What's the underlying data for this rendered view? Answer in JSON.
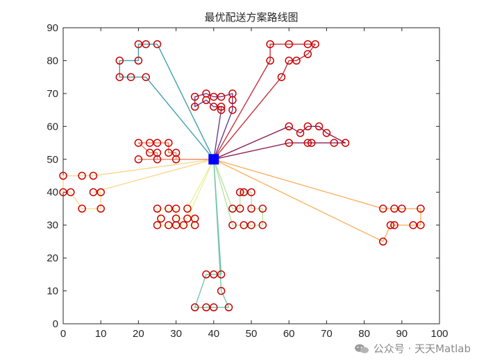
{
  "chart_data": {
    "type": "scatter",
    "title": "最优配送方案路线图",
    "xlim": [
      0,
      100
    ],
    "ylim": [
      0,
      90
    ],
    "xticks": [
      0,
      10,
      20,
      30,
      40,
      50,
      60,
      70,
      80,
      90,
      100
    ],
    "yticks": [
      0,
      10,
      20,
      30,
      40,
      50,
      60,
      70,
      80,
      90
    ],
    "grid": false,
    "depot": {
      "x": 40,
      "y": 50,
      "marker": "square",
      "color": "#0000ff"
    },
    "customer_marker": {
      "shape": "circle",
      "color": "#cc0000"
    },
    "customers": [
      [
        20,
        85
      ],
      [
        22,
        85
      ],
      [
        25,
        85
      ],
      [
        15,
        80
      ],
      [
        20,
        80
      ],
      [
        15,
        75
      ],
      [
        18,
        75
      ],
      [
        22,
        75
      ],
      [
        55,
        85
      ],
      [
        60,
        85
      ],
      [
        65,
        85
      ],
      [
        67,
        85
      ],
      [
        55,
        80
      ],
      [
        60,
        80
      ],
      [
        62,
        80
      ],
      [
        65,
        82
      ],
      [
        58,
        75
      ],
      [
        35,
        69
      ],
      [
        38,
        70
      ],
      [
        40,
        69
      ],
      [
        42,
        69
      ],
      [
        45,
        70
      ],
      [
        35,
        66
      ],
      [
        38,
        68
      ],
      [
        40,
        66
      ],
      [
        42,
        66
      ],
      [
        42,
        65
      ],
      [
        45,
        68
      ],
      [
        45,
        65
      ],
      [
        60,
        60
      ],
      [
        63,
        58
      ],
      [
        65,
        60
      ],
      [
        68,
        60
      ],
      [
        70,
        58
      ],
      [
        60,
        55
      ],
      [
        65,
        55
      ],
      [
        66,
        55
      ],
      [
        72,
        55
      ],
      [
        75,
        55
      ],
      [
        20,
        55
      ],
      [
        23,
        55
      ],
      [
        25,
        55
      ],
      [
        28,
        55
      ],
      [
        23,
        52
      ],
      [
        25,
        52
      ],
      [
        28,
        52
      ],
      [
        30,
        52
      ],
      [
        20,
        50
      ],
      [
        25,
        50
      ],
      [
        30,
        50
      ],
      [
        0,
        45
      ],
      [
        5,
        45
      ],
      [
        8,
        45
      ],
      [
        0,
        40
      ],
      [
        2,
        40
      ],
      [
        8,
        40
      ],
      [
        10,
        40
      ],
      [
        5,
        35
      ],
      [
        10,
        35
      ],
      [
        25,
        35
      ],
      [
        28,
        35
      ],
      [
        30,
        35
      ],
      [
        33,
        35
      ],
      [
        26,
        32
      ],
      [
        30,
        32
      ],
      [
        33,
        32
      ],
      [
        35,
        32
      ],
      [
        25,
        30
      ],
      [
        28,
        30
      ],
      [
        30,
        30
      ],
      [
        32,
        30
      ],
      [
        35,
        30
      ],
      [
        45,
        35
      ],
      [
        47,
        40
      ],
      [
        48,
        40
      ],
      [
        50,
        40
      ],
      [
        47,
        35
      ],
      [
        50,
        35
      ],
      [
        53,
        35
      ],
      [
        45,
        30
      ],
      [
        48,
        30
      ],
      [
        50,
        30
      ],
      [
        53,
        30
      ],
      [
        85,
        35
      ],
      [
        88,
        35
      ],
      [
        90,
        35
      ],
      [
        95,
        35
      ],
      [
        87,
        30
      ],
      [
        88,
        30
      ],
      [
        93,
        30
      ],
      [
        95,
        30
      ],
      [
        85,
        25
      ],
      [
        38,
        15
      ],
      [
        40,
        15
      ],
      [
        42,
        15
      ],
      [
        42,
        10
      ],
      [
        35,
        5
      ],
      [
        38,
        5
      ],
      [
        40,
        5
      ],
      [
        44,
        5
      ]
    ],
    "routes": [
      {
        "color": "#3fa0ad",
        "points": [
          [
            40,
            50
          ],
          [
            25,
            85
          ],
          [
            22,
            85
          ],
          [
            20,
            85
          ],
          [
            20,
            80
          ],
          [
            15,
            80
          ],
          [
            15,
            75
          ],
          [
            18,
            75
          ],
          [
            22,
            75
          ],
          [
            40,
            50
          ]
        ]
      },
      {
        "color": "#c8303c",
        "points": [
          [
            40,
            50
          ],
          [
            55,
            80
          ],
          [
            55,
            85
          ],
          [
            60,
            85
          ],
          [
            65,
            85
          ],
          [
            67,
            85
          ],
          [
            65,
            82
          ],
          [
            62,
            80
          ],
          [
            60,
            80
          ],
          [
            58,
            75
          ],
          [
            40,
            50
          ]
        ]
      },
      {
        "color": "#6a3b8a",
        "points": [
          [
            40,
            50
          ],
          [
            42,
            65
          ],
          [
            42,
            66
          ],
          [
            40,
            66
          ],
          [
            38,
            68
          ],
          [
            35,
            66
          ],
          [
            35,
            69
          ],
          [
            38,
            70
          ],
          [
            40,
            69
          ],
          [
            42,
            69
          ],
          [
            45,
            70
          ],
          [
            45,
            68
          ],
          [
            45,
            65
          ],
          [
            40,
            50
          ]
        ]
      },
      {
        "color": "#8a1e52",
        "points": [
          [
            40,
            50
          ],
          [
            60,
            60
          ],
          [
            63,
            58
          ],
          [
            65,
            60
          ],
          [
            68,
            60
          ],
          [
            70,
            58
          ],
          [
            75,
            55
          ],
          [
            72,
            55
          ],
          [
            66,
            55
          ],
          [
            65,
            55
          ],
          [
            60,
            55
          ],
          [
            40,
            50
          ]
        ]
      },
      {
        "color": "#f07f5a",
        "points": [
          [
            40,
            50
          ],
          [
            30,
            50
          ],
          [
            30,
            52
          ],
          [
            28,
            52
          ],
          [
            28,
            55
          ],
          [
            25,
            55
          ],
          [
            23,
            55
          ],
          [
            20,
            55
          ],
          [
            23,
            52
          ],
          [
            25,
            52
          ],
          [
            25,
            50
          ],
          [
            20,
            50
          ],
          [
            40,
            50
          ]
        ]
      },
      {
        "color": "#fbd893",
        "points": [
          [
            40,
            50
          ],
          [
            8,
            45
          ],
          [
            5,
            45
          ],
          [
            0,
            45
          ],
          [
            0,
            40
          ],
          [
            2,
            40
          ],
          [
            5,
            35
          ],
          [
            10,
            35
          ],
          [
            10,
            40
          ],
          [
            8,
            40
          ],
          [
            40,
            50
          ]
        ]
      },
      {
        "color": "#e9f1a0",
        "points": [
          [
            40,
            50
          ],
          [
            33,
            35
          ],
          [
            35,
            32
          ],
          [
            35,
            30
          ],
          [
            32,
            30
          ],
          [
            30,
            30
          ],
          [
            28,
            30
          ],
          [
            25,
            30
          ],
          [
            26,
            32
          ],
          [
            25,
            35
          ],
          [
            28,
            35
          ],
          [
            30,
            35
          ],
          [
            30,
            32
          ],
          [
            33,
            32
          ],
          [
            40,
            50
          ]
        ]
      },
      {
        "color": "#b9e2a4",
        "points": [
          [
            40,
            50
          ],
          [
            45,
            35
          ],
          [
            47,
            35
          ],
          [
            47,
            40
          ],
          [
            48,
            40
          ],
          [
            50,
            40
          ],
          [
            50,
            35
          ],
          [
            53,
            35
          ],
          [
            53,
            30
          ],
          [
            50,
            30
          ],
          [
            48,
            30
          ],
          [
            45,
            30
          ],
          [
            40,
            50
          ]
        ]
      },
      {
        "color": "#fbb060",
        "points": [
          [
            40,
            50
          ],
          [
            85,
            35
          ],
          [
            88,
            35
          ],
          [
            90,
            35
          ],
          [
            95,
            35
          ],
          [
            95,
            30
          ],
          [
            93,
            30
          ],
          [
            88,
            30
          ],
          [
            87,
            30
          ],
          [
            85,
            25
          ],
          [
            40,
            50
          ]
        ]
      },
      {
        "color": "#74c7a6",
        "points": [
          [
            40,
            50
          ],
          [
            42,
            15
          ],
          [
            40,
            15
          ],
          [
            38,
            15
          ],
          [
            35,
            5
          ],
          [
            38,
            5
          ],
          [
            40,
            5
          ],
          [
            44,
            5
          ],
          [
            42,
            10
          ],
          [
            40,
            50
          ]
        ]
      }
    ]
  },
  "watermark": {
    "text": "公众号 · 天天Matlab"
  }
}
